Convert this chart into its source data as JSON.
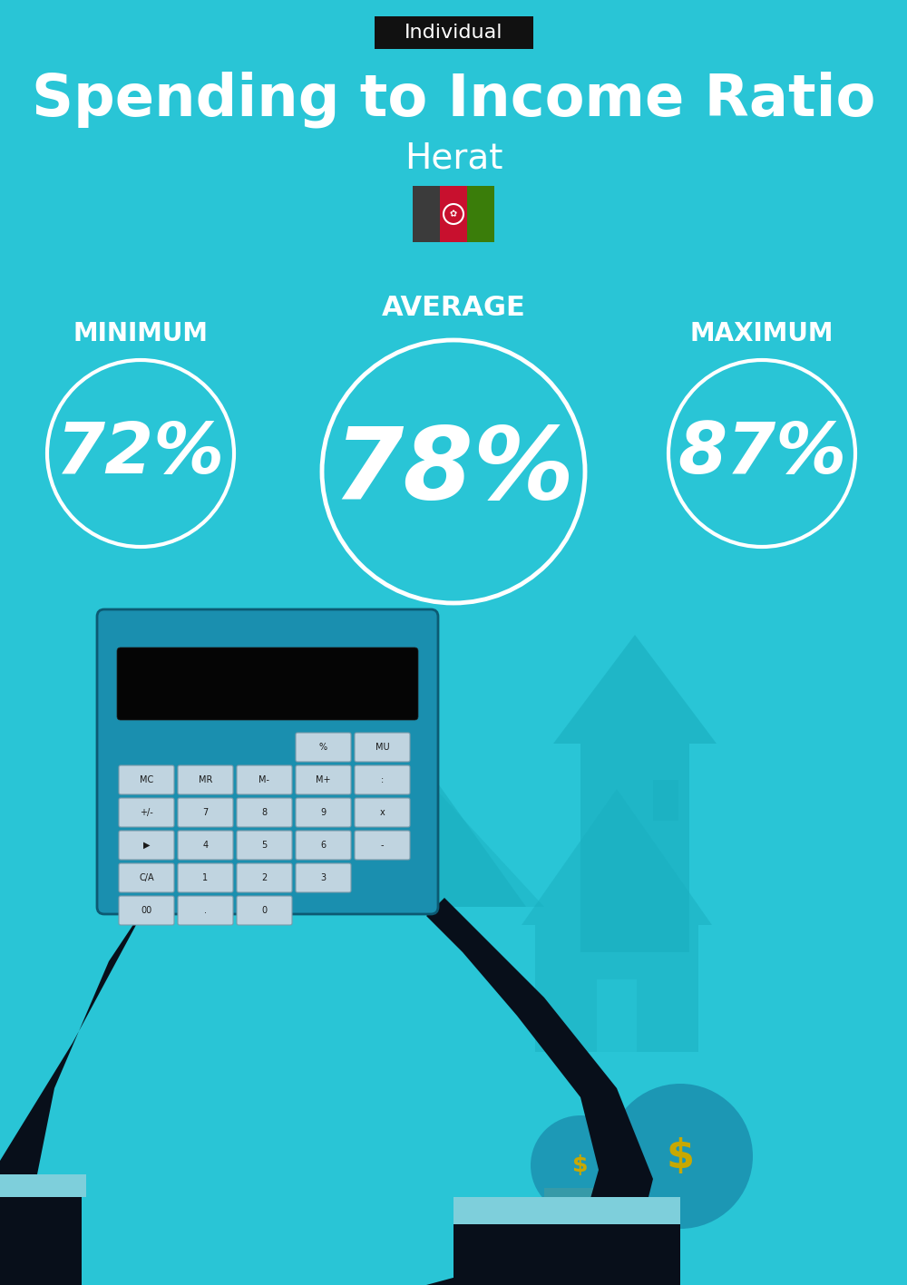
{
  "bg_color": "#29C5D6",
  "title": "Spending to Income Ratio",
  "subtitle": "Herat",
  "tag_text": "Individual",
  "tag_bg": "#111111",
  "tag_text_color": "#ffffff",
  "avg_label": "AVERAGE",
  "min_label": "MINIMUM",
  "max_label": "MAXIMUM",
  "avg_value": "78%",
  "min_value": "72%",
  "max_value": "87%",
  "circle_color": "#ffffff",
  "text_color": "#ffffff",
  "title_fontsize": 46,
  "subtitle_fontsize": 28,
  "label_fontsize": 20,
  "avg_value_fontsize": 80,
  "min_max_value_fontsize": 56,
  "circle_linewidth": 3,
  "flag_colors": [
    "#3B3B3B",
    "#C8102E",
    "#3A7D0A"
  ],
  "arrow_color": "#1AAFC0",
  "dark_color": "#080F1A",
  "calc_color": "#1A8FAF",
  "calc_edge": "#0C5A73",
  "btn_color": "#C0D4E0",
  "btn_edge": "#7A9AAA",
  "house_color": "#1AAFC0",
  "money_color": "#1A8FAF",
  "dollar_color": "#C8A800",
  "cuff_color": "#7ECFDB"
}
